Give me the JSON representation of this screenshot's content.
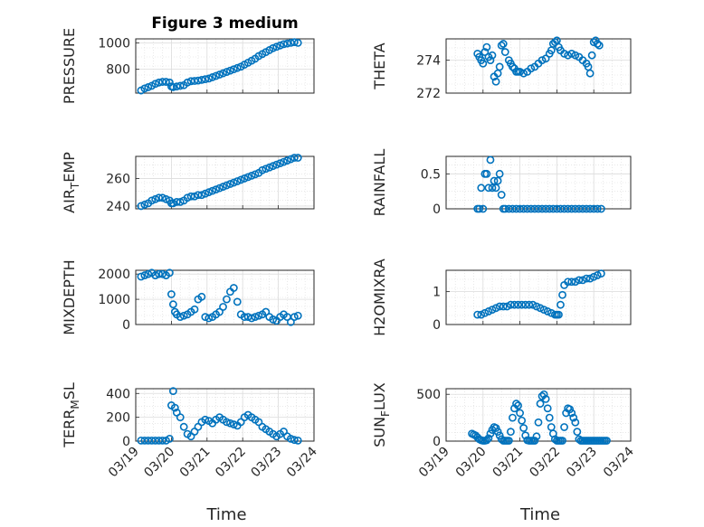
{
  "colors": {
    "series": "#0072BD",
    "axis": "#262626",
    "grid": "#dcdcdc"
  },
  "time_ticks": [
    "03/19",
    "03/20",
    "03/21",
    "03/22",
    "03/23",
    "03/24"
  ],
  "chart_data": [
    {
      "type": "scatter",
      "title": "Figure 3 medium",
      "ylabel": "PRESSURE",
      "xlabel": "",
      "xlim": [
        0,
        5
      ],
      "ylim": [
        620,
        1030
      ],
      "yticks": [
        800,
        1000
      ],
      "grid": true,
      "x": [
        0.15,
        0.25,
        0.35,
        0.45,
        0.55,
        0.65,
        0.75,
        0.85,
        0.95,
        1.0,
        1.05,
        1.15,
        1.25,
        1.35,
        1.45,
        1.55,
        1.65,
        1.75,
        1.85,
        1.95,
        2.05,
        2.15,
        2.25,
        2.35,
        2.45,
        2.55,
        2.65,
        2.75,
        2.85,
        2.95,
        3.05,
        3.15,
        3.25,
        3.35,
        3.45,
        3.55,
        3.65,
        3.75,
        3.85,
        3.95,
        4.05,
        4.15,
        4.25,
        4.35,
        4.45,
        4.55
      ],
      "y": [
        640,
        655,
        665,
        675,
        690,
        700,
        705,
        705,
        700,
        670,
        665,
        670,
        675,
        680,
        700,
        710,
        712,
        715,
        720,
        725,
        730,
        740,
        750,
        760,
        770,
        780,
        790,
        800,
        810,
        820,
        835,
        850,
        865,
        880,
        900,
        915,
        930,
        945,
        960,
        970,
        980,
        990,
        995,
        1000,
        1005,
        1000
      ]
    },
    {
      "type": "scatter",
      "title": "",
      "ylabel": "THETA",
      "xlabel": "",
      "xlim": [
        0,
        5
      ],
      "ylim": [
        272,
        275.3
      ],
      "yticks": [
        272,
        274
      ],
      "grid": true,
      "x": [
        0.85,
        0.9,
        0.95,
        1.0,
        1.05,
        1.1,
        1.15,
        1.2,
        1.25,
        1.3,
        1.35,
        1.4,
        1.45,
        1.5,
        1.55,
        1.6,
        1.7,
        1.75,
        1.8,
        1.85,
        1.9,
        1.95,
        2.0,
        2.1,
        2.2,
        2.3,
        2.4,
        2.5,
        2.6,
        2.7,
        2.8,
        2.85,
        2.9,
        2.95,
        3.0,
        3.05,
        3.1,
        3.2,
        3.3,
        3.4,
        3.5,
        3.6,
        3.7,
        3.8,
        3.85,
        3.9,
        3.95,
        4.0,
        4.05,
        4.1,
        4.15
      ],
      "y": [
        274.4,
        274.2,
        274.0,
        273.8,
        274.5,
        274.8,
        274.2,
        274.0,
        274.3,
        273.0,
        272.7,
        273.2,
        273.6,
        274.9,
        275.0,
        274.5,
        274.0,
        273.8,
        273.6,
        273.5,
        273.3,
        273.3,
        273.3,
        273.2,
        273.3,
        273.5,
        273.6,
        273.8,
        274.0,
        274.1,
        274.4,
        274.6,
        275.0,
        275.1,
        275.2,
        274.8,
        274.6,
        274.4,
        274.3,
        274.4,
        274.3,
        274.2,
        274.0,
        273.8,
        273.6,
        273.2,
        274.3,
        275.1,
        275.2,
        275.0,
        274.9
      ]
    },
    {
      "type": "scatter",
      "title": "",
      "ylabel": "AIR_TEMP",
      "xlabel": "",
      "xlim": [
        0,
        5
      ],
      "ylim": [
        238,
        276
      ],
      "yticks": [
        240,
        260
      ],
      "grid": true,
      "x": [
        0.15,
        0.25,
        0.35,
        0.45,
        0.55,
        0.65,
        0.75,
        0.85,
        0.95,
        1.0,
        1.05,
        1.15,
        1.25,
        1.35,
        1.45,
        1.55,
        1.65,
        1.75,
        1.85,
        1.95,
        2.05,
        2.15,
        2.25,
        2.35,
        2.45,
        2.55,
        2.65,
        2.75,
        2.85,
        2.95,
        3.05,
        3.15,
        3.25,
        3.35,
        3.45,
        3.55,
        3.65,
        3.75,
        3.85,
        3.95,
        4.05,
        4.15,
        4.25,
        4.35,
        4.45,
        4.55
      ],
      "y": [
        240,
        241,
        242,
        244,
        245,
        246,
        246,
        245,
        244,
        242,
        242,
        243,
        243,
        244,
        246,
        247,
        247,
        248,
        248,
        249,
        250,
        251,
        252,
        253,
        254,
        255,
        256,
        257,
        258,
        259,
        260,
        261,
        262,
        263,
        264,
        266,
        267,
        268,
        269,
        270,
        271,
        272,
        273,
        274,
        275,
        275
      ]
    },
    {
      "type": "scatter",
      "title": "",
      "ylabel": "RAINFALL",
      "xlabel": "",
      "xlim": [
        0,
        5
      ],
      "ylim": [
        0,
        0.75
      ],
      "yticks": [
        0,
        0.5
      ],
      "grid": true,
      "x": [
        0.85,
        0.9,
        0.95,
        1.0,
        1.05,
        1.1,
        1.15,
        1.2,
        1.25,
        1.3,
        1.35,
        1.4,
        1.45,
        1.5,
        1.55,
        1.6,
        1.7,
        1.8,
        1.9,
        2.0,
        2.1,
        2.2,
        2.3,
        2.4,
        2.5,
        2.6,
        2.7,
        2.8,
        2.9,
        3.0,
        3.1,
        3.2,
        3.3,
        3.4,
        3.5,
        3.6,
        3.7,
        3.8,
        3.9,
        4.0,
        4.1,
        4.2
      ],
      "y": [
        0,
        0,
        0.3,
        0,
        0.5,
        0.5,
        0.3,
        0.7,
        0.3,
        0.4,
        0.3,
        0.4,
        0.5,
        0.2,
        0,
        0,
        0,
        0,
        0,
        0,
        0,
        0,
        0,
        0,
        0,
        0,
        0,
        0,
        0,
        0,
        0,
        0,
        0,
        0,
        0,
        0,
        0,
        0,
        0,
        0,
        0,
        0
      ]
    },
    {
      "type": "scatter",
      "title": "",
      "ylabel": "MIXDEPTH",
      "xlabel": "",
      "xlim": [
        0,
        5
      ],
      "ylim": [
        0,
        2150
      ],
      "yticks": [
        0,
        1000,
        2000
      ],
      "grid": true,
      "x": [
        0.15,
        0.25,
        0.35,
        0.45,
        0.55,
        0.65,
        0.75,
        0.85,
        0.95,
        1.0,
        1.05,
        1.1,
        1.15,
        1.25,
        1.35,
        1.45,
        1.55,
        1.65,
        1.75,
        1.85,
        1.95,
        2.05,
        2.15,
        2.25,
        2.35,
        2.45,
        2.55,
        2.65,
        2.75,
        2.85,
        2.95,
        3.05,
        3.15,
        3.25,
        3.35,
        3.45,
        3.55,
        3.65,
        3.75,
        3.85,
        3.95,
        4.05,
        4.15,
        4.25,
        4.35,
        4.45,
        4.55
      ],
      "y": [
        1900,
        1950,
        2000,
        2050,
        1950,
        2000,
        2000,
        1950,
        2050,
        1200,
        800,
        500,
        400,
        300,
        350,
        400,
        500,
        600,
        1000,
        1100,
        300,
        250,
        300,
        400,
        500,
        700,
        1000,
        1300,
        1450,
        900,
        400,
        300,
        300,
        250,
        300,
        350,
        400,
        500,
        300,
        200,
        150,
        300,
        400,
        300,
        100,
        300,
        350
      ]
    },
    {
      "type": "scatter",
      "title": "",
      "ylabel": "H2OMIXRA",
      "xlabel": "",
      "xlim": [
        0,
        5
      ],
      "ylim": [
        0,
        1.65
      ],
      "yticks": [
        0,
        1
      ],
      "grid": true,
      "x": [
        0.85,
        0.95,
        1.05,
        1.15,
        1.25,
        1.35,
        1.45,
        1.55,
        1.65,
        1.75,
        1.85,
        1.95,
        2.05,
        2.15,
        2.25,
        2.35,
        2.45,
        2.55,
        2.65,
        2.75,
        2.85,
        2.95,
        3.0,
        3.05,
        3.1,
        3.15,
        3.2,
        3.3,
        3.4,
        3.5,
        3.6,
        3.7,
        3.8,
        3.9,
        4.0,
        4.1,
        4.2
      ],
      "y": [
        0.3,
        0.3,
        0.35,
        0.4,
        0.45,
        0.5,
        0.55,
        0.55,
        0.55,
        0.6,
        0.6,
        0.6,
        0.6,
        0.6,
        0.6,
        0.6,
        0.55,
        0.5,
        0.45,
        0.4,
        0.35,
        0.3,
        0.3,
        0.3,
        0.6,
        0.9,
        1.2,
        1.3,
        1.3,
        1.3,
        1.35,
        1.35,
        1.4,
        1.4,
        1.45,
        1.5,
        1.55
      ]
    },
    {
      "type": "scatter",
      "title": "",
      "ylabel": "TERR_MSL",
      "xlabel": "Time",
      "xlim": [
        0,
        5
      ],
      "ylim": [
        0,
        440
      ],
      "yticks": [
        0,
        200,
        400
      ],
      "grid": true,
      "x": [
        0.15,
        0.25,
        0.35,
        0.45,
        0.55,
        0.65,
        0.75,
        0.85,
        0.95,
        1.0,
        1.05,
        1.1,
        1.15,
        1.25,
        1.35,
        1.45,
        1.55,
        1.65,
        1.75,
        1.85,
        1.95,
        2.05,
        2.15,
        2.25,
        2.35,
        2.45,
        2.55,
        2.65,
        2.75,
        2.85,
        2.95,
        3.05,
        3.15,
        3.25,
        3.35,
        3.45,
        3.55,
        3.65,
        3.75,
        3.85,
        3.95,
        4.05,
        4.15,
        4.25,
        4.35,
        4.45,
        4.55
      ],
      "y": [
        5,
        5,
        5,
        5,
        5,
        5,
        5,
        5,
        20,
        300,
        420,
        280,
        240,
        200,
        120,
        60,
        40,
        80,
        120,
        160,
        180,
        170,
        150,
        180,
        200,
        180,
        160,
        150,
        140,
        130,
        160,
        200,
        220,
        200,
        180,
        160,
        120,
        100,
        80,
        60,
        40,
        60,
        80,
        40,
        20,
        10,
        5
      ]
    },
    {
      "type": "scatter",
      "title": "",
      "ylabel": "SUN_FLUX",
      "xlabel": "Time",
      "xlim": [
        0,
        5
      ],
      "ylim": [
        0,
        560
      ],
      "yticks": [
        0,
        500
      ],
      "grid": true,
      "x": [
        0.7,
        0.75,
        0.8,
        0.85,
        0.9,
        0.95,
        1.0,
        1.05,
        1.1,
        1.15,
        1.2,
        1.25,
        1.3,
        1.35,
        1.4,
        1.45,
        1.5,
        1.55,
        1.6,
        1.65,
        1.7,
        1.75,
        1.8,
        1.85,
        1.9,
        1.95,
        2.0,
        2.05,
        2.1,
        2.15,
        2.2,
        2.25,
        2.3,
        2.35,
        2.4,
        2.45,
        2.5,
        2.55,
        2.6,
        2.65,
        2.7,
        2.75,
        2.8,
        2.85,
        2.9,
        2.95,
        3.0,
        3.05,
        3.1,
        3.15,
        3.2,
        3.25,
        3.3,
        3.35,
        3.4,
        3.45,
        3.5,
        3.55,
        3.6,
        3.65,
        3.7,
        3.75,
        3.8,
        3.85,
        3.9,
        3.95,
        4.0,
        4.05,
        4.1,
        4.15,
        4.2,
        4.25,
        4.3,
        4.35
      ],
      "y": [
        80,
        70,
        60,
        40,
        20,
        10,
        5,
        5,
        10,
        30,
        80,
        120,
        150,
        140,
        100,
        60,
        20,
        5,
        5,
        5,
        5,
        100,
        250,
        350,
        400,
        380,
        300,
        220,
        140,
        60,
        10,
        5,
        5,
        5,
        5,
        50,
        200,
        400,
        480,
        500,
        450,
        350,
        250,
        150,
        80,
        20,
        5,
        5,
        5,
        5,
        150,
        300,
        350,
        340,
        300,
        250,
        200,
        100,
        20,
        5,
        5,
        5,
        5,
        5,
        5,
        5,
        5,
        5,
        5,
        5,
        5,
        5,
        5,
        5
      ]
    }
  ]
}
